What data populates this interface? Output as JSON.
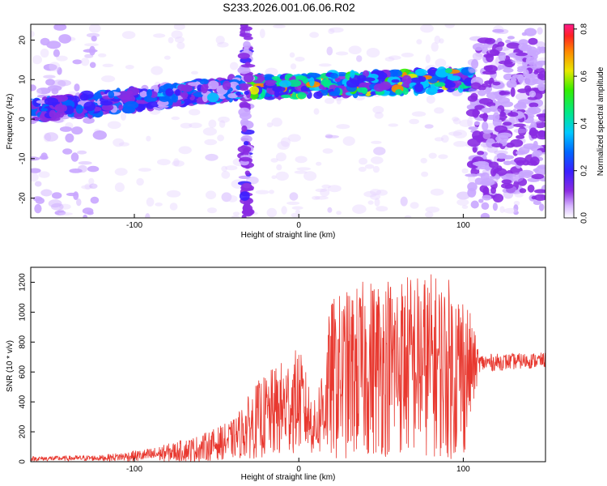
{
  "title": "S233.2026.001.06.06.R02",
  "chart_data": [
    {
      "type": "heatmap",
      "name": "spectrogram",
      "xlabel": "Height of straight line (km)",
      "ylabel": "Frequency (Hz)",
      "xlim": [
        -163,
        150
      ],
      "ylim": [
        -25,
        24
      ],
      "xticks": [
        -100,
        0,
        100
      ],
      "yticks": [
        -20,
        -10,
        0,
        10,
        20
      ],
      "colorbar": {
        "label": "Normalized spectral amplitude",
        "range": [
          0,
          0.82
        ],
        "ticks": [
          "0.0",
          "0.2",
          "0.4",
          "0.6",
          "0.8"
        ]
      },
      "segments": [
        {
          "name": "left-band",
          "x_start": -163,
          "x_end": -35,
          "freq_start": 2,
          "freq_end": 8,
          "level": 0.32
        },
        {
          "name": "middle-band",
          "x_start": -28,
          "x_end": 105,
          "freq_start": 8,
          "freq_end": 10,
          "level": 0.45
        },
        {
          "name": "right-noise",
          "x_start": 105,
          "x_end": 150,
          "freq_start": -20,
          "freq_end": 20,
          "level": 0.18
        }
      ]
    },
    {
      "type": "line",
      "name": "snr",
      "xlabel": "Height of straight line (km)",
      "ylabel": "SNR (10 * v/v)",
      "xlim": [
        -163,
        150
      ],
      "ylim": [
        0,
        1300
      ],
      "xticks": [
        -100,
        0,
        100
      ],
      "yticks": [
        0,
        200,
        400,
        600,
        800,
        1000,
        1200
      ],
      "color": "#e8382f",
      "envelope": [
        {
          "x": -163,
          "mean": 20,
          "amp": 15
        },
        {
          "x": -120,
          "mean": 25,
          "amp": 20
        },
        {
          "x": -90,
          "mean": 45,
          "amp": 45
        },
        {
          "x": -60,
          "mean": 90,
          "amp": 90
        },
        {
          "x": -40,
          "mean": 150,
          "amp": 130
        },
        {
          "x": -25,
          "mean": 280,
          "amp": 260
        },
        {
          "x": -10,
          "mean": 350,
          "amp": 330
        },
        {
          "x": 0,
          "mean": 420,
          "amp": 350
        },
        {
          "x": 10,
          "mean": 220,
          "amp": 180
        },
        {
          "x": 20,
          "mean": 550,
          "amp": 550
        },
        {
          "x": 50,
          "mean": 650,
          "amp": 620
        },
        {
          "x": 80,
          "mean": 650,
          "amp": 620
        },
        {
          "x": 100,
          "mean": 600,
          "amp": 600
        },
        {
          "x": 110,
          "mean": 660,
          "amp": 60
        },
        {
          "x": 150,
          "mean": 680,
          "amp": 50
        }
      ]
    }
  ]
}
